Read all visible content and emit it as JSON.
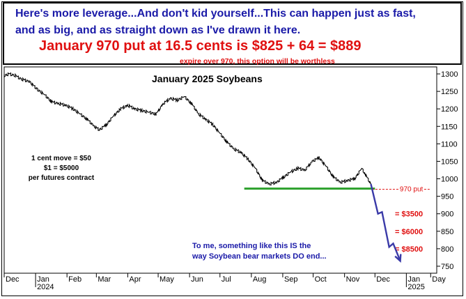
{
  "banner": {
    "line1": "Here's more leverage...And don't kid yourself...This can happen just as fast,",
    "line2": "and as big, and as straight down as I've drawn it here.",
    "line3": "January 970 put at 16.5 cents is $825 + 64 = $889",
    "line4": "expire over 970, this option will be worthless"
  },
  "chart_data": {
    "type": "line",
    "title": "January 2025 Soybeans",
    "y_range": [
      730,
      1320
    ],
    "y_ticks": [
      750,
      800,
      850,
      900,
      950,
      1000,
      1050,
      1100,
      1150,
      1200,
      1250,
      1300
    ],
    "x_start": "2023-12-01",
    "x_end": "2025-01-31",
    "x_months": [
      "Dec",
      "Jan",
      "Feb",
      "Mar",
      "Apr",
      "May",
      "Jun",
      "Jul",
      "Aug",
      "Sep",
      "Oct",
      "Nov",
      "Dec",
      "Jan",
      "Day"
    ],
    "x_month_dates": [
      "2023-12-01",
      "2024-01-01",
      "2024-02-01",
      "2024-03-01",
      "2024-04-01",
      "2024-05-01",
      "2024-06-01",
      "2024-07-01",
      "2024-08-01",
      "2024-09-01",
      "2024-10-01",
      "2024-11-01",
      "2024-12-01",
      "2025-01-01",
      "2025-01-25"
    ],
    "x_years": [
      {
        "label": "2024",
        "date": "2024-01-01"
      },
      {
        "label": "2025",
        "date": "2025-01-01"
      }
    ],
    "series": [
      {
        "type": "price",
        "points": [
          [
            "2023-12-01",
            1295
          ],
          [
            "2023-12-06",
            1300
          ],
          [
            "2023-12-12",
            1295
          ],
          [
            "2023-12-18",
            1285
          ],
          [
            "2023-12-26",
            1278
          ],
          [
            "2024-01-03",
            1255
          ],
          [
            "2024-01-10",
            1240
          ],
          [
            "2024-01-17",
            1220
          ],
          [
            "2024-01-24",
            1215
          ],
          [
            "2024-01-31",
            1210
          ],
          [
            "2024-02-07",
            1200
          ],
          [
            "2024-02-14",
            1185
          ],
          [
            "2024-02-21",
            1170
          ],
          [
            "2024-02-28",
            1150
          ],
          [
            "2024-03-04",
            1140
          ],
          [
            "2024-03-11",
            1155
          ],
          [
            "2024-03-18",
            1180
          ],
          [
            "2024-03-25",
            1200
          ],
          [
            "2024-04-01",
            1210
          ],
          [
            "2024-04-08",
            1200
          ],
          [
            "2024-04-15",
            1195
          ],
          [
            "2024-04-22",
            1190
          ],
          [
            "2024-04-29",
            1185
          ],
          [
            "2024-05-06",
            1215
          ],
          [
            "2024-05-13",
            1230
          ],
          [
            "2024-05-20",
            1225
          ],
          [
            "2024-05-27",
            1235
          ],
          [
            "2024-06-03",
            1215
          ],
          [
            "2024-06-10",
            1185
          ],
          [
            "2024-06-17",
            1170
          ],
          [
            "2024-06-24",
            1155
          ],
          [
            "2024-07-01",
            1130
          ],
          [
            "2024-07-08",
            1105
          ],
          [
            "2024-07-15",
            1085
          ],
          [
            "2024-07-22",
            1075
          ],
          [
            "2024-07-29",
            1055
          ],
          [
            "2024-08-05",
            1030
          ],
          [
            "2024-08-12",
            995
          ],
          [
            "2024-08-19",
            985
          ],
          [
            "2024-08-26",
            990
          ],
          [
            "2024-09-02",
            1005
          ],
          [
            "2024-09-09",
            1020
          ],
          [
            "2024-09-16",
            1030
          ],
          [
            "2024-09-23",
            1025
          ],
          [
            "2024-09-30",
            1050
          ],
          [
            "2024-10-07",
            1060
          ],
          [
            "2024-10-14",
            1035
          ],
          [
            "2024-10-21",
            1005
          ],
          [
            "2024-10-28",
            990
          ],
          [
            "2024-11-04",
            995
          ],
          [
            "2024-11-11",
            1000
          ],
          [
            "2024-11-18",
            1030
          ],
          [
            "2024-11-22",
            1010
          ],
          [
            "2024-11-27",
            985
          ]
        ]
      },
      {
        "type": "projection",
        "points": [
          [
            "2024-11-27",
            985
          ],
          [
            "2024-12-04",
            900
          ],
          [
            "2024-12-08",
            905
          ],
          [
            "2024-12-15",
            805
          ],
          [
            "2024-12-19",
            815
          ],
          [
            "2024-12-26",
            765
          ]
        ]
      }
    ],
    "support_line": {
      "value": 972,
      "start": "2024-07-25",
      "end": "2024-12-01"
    },
    "put_level": {
      "value": 970,
      "label": "970 put",
      "start": "2024-11-28",
      "end": "2025-01-24"
    },
    "dollar_levels": [
      {
        "label": "= $3500",
        "value": 900
      },
      {
        "label": "= $6000",
        "value": 850
      },
      {
        "label": "= $8500",
        "value": 800
      }
    ],
    "annotations": {
      "title": "January 2025 Soybeans",
      "contract_text": [
        "1 cent move = $50",
        "$1 = $5000",
        "per futures contract"
      ],
      "bottom_text": [
        "To me, something like this IS the",
        "way Soybean bear markets DO end..."
      ]
    },
    "colors": {
      "price": "#000000",
      "projection": "#3a3aa8",
      "support": "#2ca02c",
      "put": "#e01010",
      "bottom_text": "#1a1aa8"
    }
  }
}
